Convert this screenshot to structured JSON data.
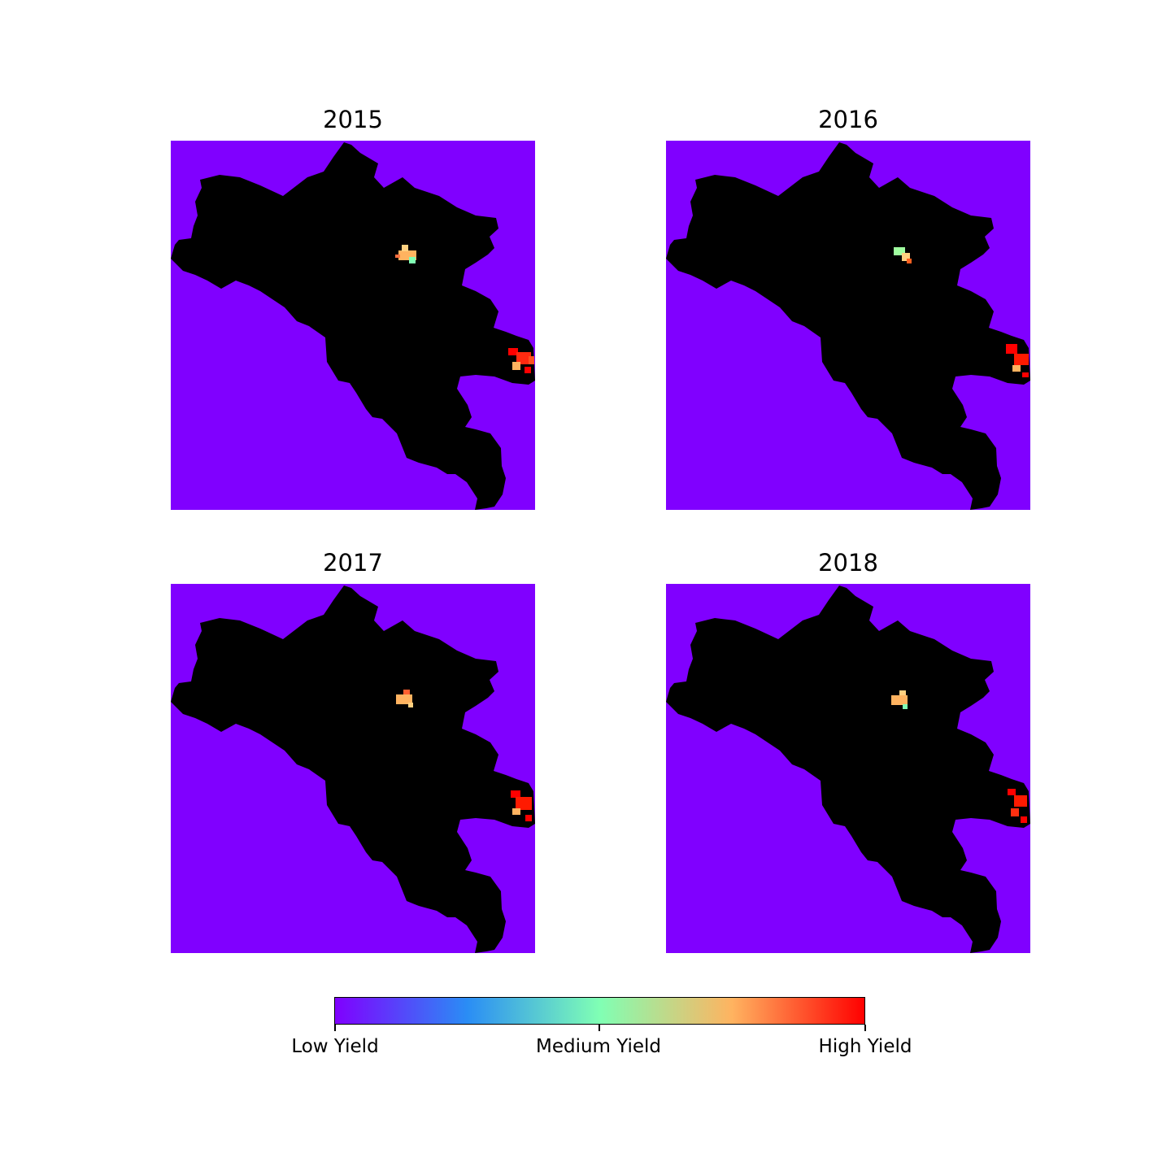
{
  "panels": [
    {
      "title": "2015"
    },
    {
      "title": "2016"
    },
    {
      "title": "2017"
    },
    {
      "title": "2018"
    }
  ],
  "colors": {
    "background_region": "#8000ff",
    "land": "#000000",
    "colormap": [
      "#8000ff",
      "#2a8df5",
      "#80ffb4",
      "#ffb360",
      "#ff0000"
    ]
  },
  "colorbar": {
    "ticks": [
      {
        "label": "Low Yield",
        "position": 0.0
      },
      {
        "label": "Medium Yield",
        "position": 0.5
      },
      {
        "label": "High Yield",
        "position": 1.0
      }
    ]
  }
}
